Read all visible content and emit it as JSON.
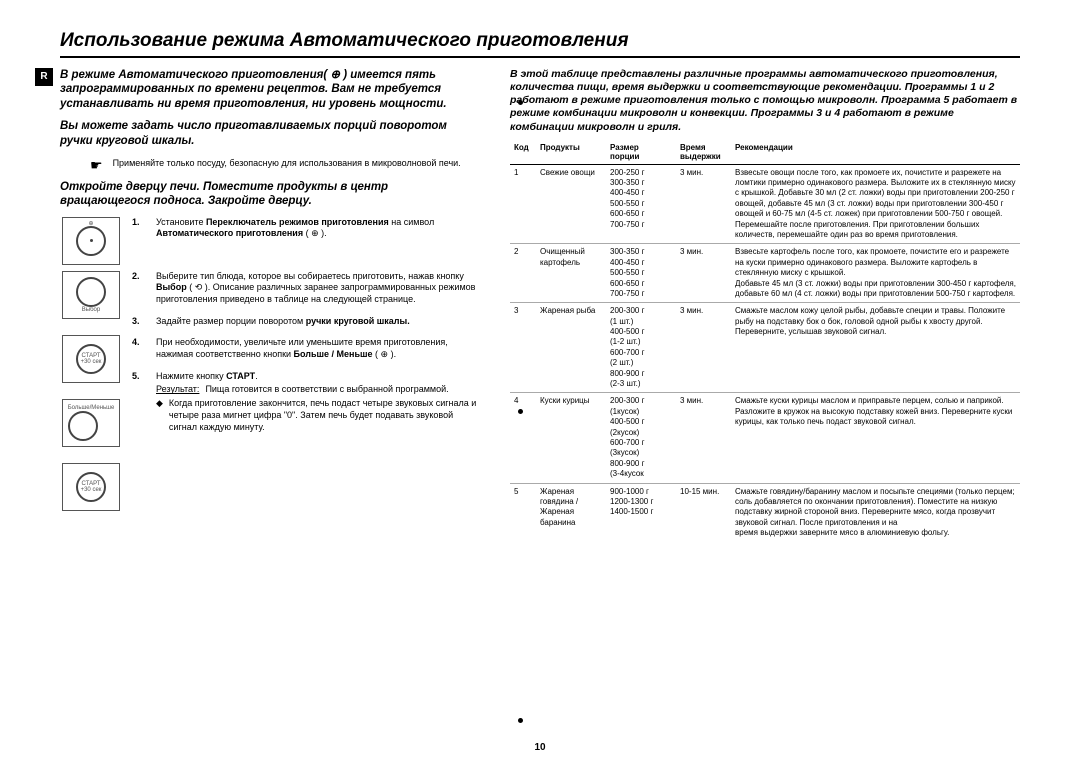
{
  "title": "Использование режима Автоматического приготовления",
  "r_badge": "R",
  "left": {
    "intro1": "В режиме Автоматического приготовления( ⊕ ) имеется пять запрограммированных по времени рецептов. Вам не требуется устанавливать ни время приготовления, ни уровень мощности.",
    "intro2": "Вы можете задать число приготавливаемых порций поворотом ручки круговой шкалы.",
    "note": "Применяйте только посуду, безопасную для использования в микроволновой печи.",
    "instruct_intro": "Откройте дверцу печи. Поместите продукты в центр вращающегося подноса. Закройте дверцу.",
    "steps": [
      {
        "num": "1.",
        "text_pre": "Установите ",
        "b1": "Переключатель режимов приготовления",
        "text_mid": " на символ ",
        "b2": "Автоматического приготовления",
        "text_post": " ( ⊕ )."
      },
      {
        "num": "2.",
        "text": "Выберите тип блюда, которое вы собираетесь приготовить, нажав кнопку ",
        "b": "Выбор",
        "text2": " ( ⟲ ). Описание различных заранее запрограммированных режимов приготовления приведено в таблице на следующей странице."
      },
      {
        "num": "3.",
        "text": "Задайте размер порции поворотом ",
        "b": "ручки круговой шкалы.",
        "text2": ""
      },
      {
        "num": "4.",
        "text": "При необходимости, увеличьте или уменьшите время приготовления, нажимая соответственно кнопки ",
        "b": "Больше / Меньше",
        "text2": " ( ⊕ )."
      },
      {
        "num": "5.",
        "text": "Нажмите кнопку ",
        "b": "СТАРТ",
        "text2": ".",
        "result_label": "Результат:",
        "result": "Пища готовится в соответствии с выбранной программой.",
        "bullet": "Когда приготовление закончится, печь подаст четыре звуковых сигнала и четыре раза мигнет цифра \"0\". Затем печь будет подавать звуковой сигнал каждую минуту."
      }
    ],
    "icon_labels": [
      "",
      "Выбор",
      "СТАРТ\n+30 сек",
      "Больше/Меньше",
      "СТАРТ\n+30 сек"
    ]
  },
  "right": {
    "intro": "В этой таблице представлены различные программы автоматического приготовления, количества пищи, время выдержки и соответствующие рекомендации. Программы 1 и 2 работают в режиме приготовления только с помощью микроволн. Программа 5 работает в режиме комбинации микроволн и конвекции. Программы 3 и 4 работают в режиме комбинации микроволн и гриля.",
    "headers": {
      "code": "Код",
      "prod": "Продукты",
      "size": "Размер\nпорции",
      "time": "Время\nвыдержки",
      "rec": "Рекомендации"
    },
    "rows": [
      {
        "code": "1",
        "prod": "Свежие овощи",
        "size": "200-250 г\n300-350 г\n400-450 г\n500-550 г\n600-650 г\n700-750 г",
        "time": "3 мин.",
        "rec": "Взвесьте овощи после того, как промоете их, почистите и разрежете на ломтики примерно одинакового размера. Выложите их в стеклянную миску с крышкой. Добавьте 30 мл (2 ст. ложки) воды при приготовлении 200-250 г овощей, добавьте 45 мл (3 ст. ложки) воды при приготовлении 300-450 г овощей и 60-75 мл (4-5 ст. ложек) при приготовлении 500-750 г овощей. Перемешайте после приготовления. При приготовлении больших количеств, перемешайте один раз во время приготовления."
      },
      {
        "code": "2",
        "prod": "Очищенный картофель",
        "size": "300-350 г\n400-450 г\n500-550 г\n600-650 г\n700-750 г",
        "time": "3 мин.",
        "rec": "Взвесьте картофель после того, как промоете, почистите его и разрежете на куски примерно одинакового размера. Выложите картофель в стеклянную миску с крышкой.\nДобавьте 45 мл (3 ст. ложки) воды при приготовлении 300-450 г картофеля, добавьте 60 мл (4 ст. ложки) воды при приготовлении 500-750 г картофеля."
      },
      {
        "code": "3",
        "prod": "Жареная рыба",
        "size": "200-300 г\n(1 шт.)\n400-500 г\n(1-2 шт.)\n600-700 г\n(2 шт.)\n800-900 г\n(2-3 шт.)",
        "time": "3 мин.",
        "rec": "Смажьте маслом кожу целой рыбы, добавьте специи и травы. Положите рыбу на подставку бок о бок, головой одной рыбы к хвосту другой. Переверните, услышав звуковой сигнал."
      },
      {
        "code": "4",
        "prod": "Куски курицы",
        "size": "200-300 г\n(1кусок)\n400-500 г\n(2кусок)\n600-700 г\n(3кусок)\n800-900 г\n(3-4кусок",
        "time": "3 мин.",
        "rec": "Смажьте куски курицы маслом и приправьте перцем, солью и паприкой. Разложите в кружок на высокую подставку кожей вниз. Переверните куски курицы, как только печь подаст звуковой сигнал."
      },
      {
        "code": "5",
        "prod": "Жареная говядина / Жареная баранина",
        "size": "900-1000 г\n1200-1300 г\n1400-1500 г",
        "time": "10-15 мин.",
        "rec": "Смажьте говядину/баранину маслом и посыпьте специями (только перцем; соль добавляется по окончании приготовления). Поместите на низкую подставку жирной стороной вниз. Переверните мясо, когда прозвучит звуковой сигнал. После приготовления и на\nвремя выдержки заверните мясо в алюминиевую фольгу."
      }
    ]
  },
  "page_number": "10"
}
